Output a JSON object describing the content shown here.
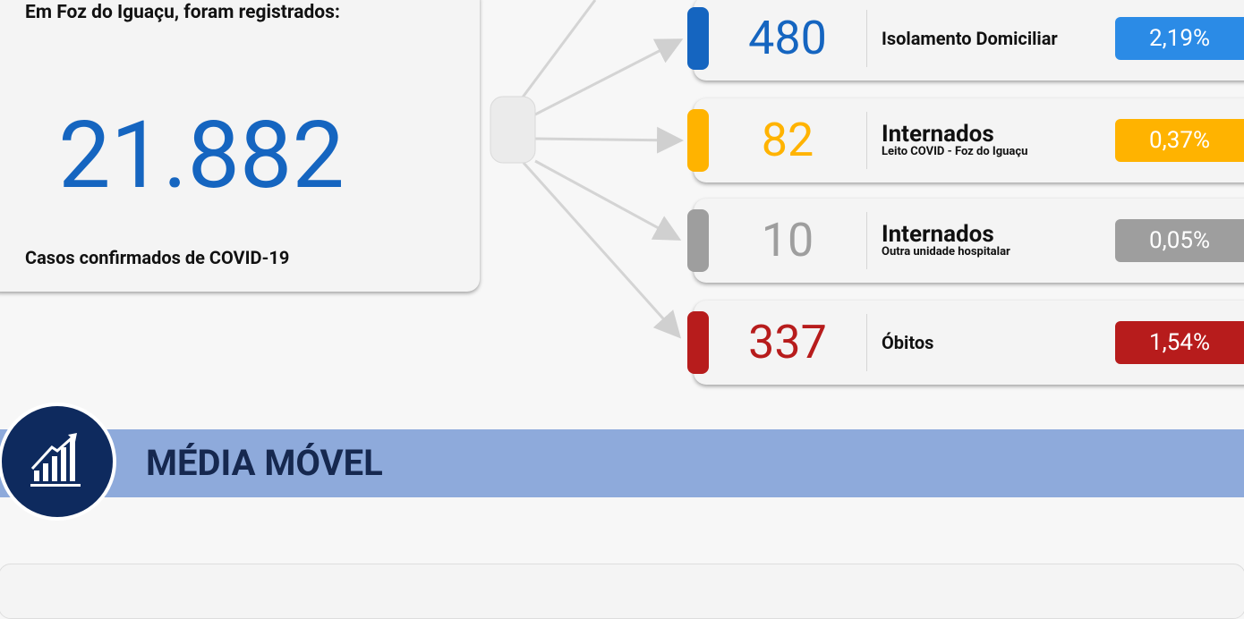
{
  "summary": {
    "heading": "Em Foz do Iguaçu, foram registrados:",
    "total": "21.882",
    "caption": "Casos confirmados de COVID-19"
  },
  "rows": [
    {
      "value": "480",
      "title": "Isolamento Domiciliar",
      "percent": "2,19%",
      "color": "#1565c0",
      "badge_color": "#2b8be6"
    },
    {
      "value": "82",
      "title": "Internados",
      "subtitle": "Leito COVID - Foz do Iguaçu",
      "percent": "0,37%",
      "color": "#ffb300",
      "badge_color": "#ffb300"
    },
    {
      "value": "10",
      "title": "Internados",
      "subtitle": "Outra unidade hospitalar",
      "percent": "0,05%",
      "color": "#9e9e9e",
      "badge_color": "#9e9e9e"
    },
    {
      "value": "337",
      "title": "Óbitos",
      "percent": "1,54%",
      "color": "#b71c1c",
      "badge_color": "#b71c1c"
    }
  ],
  "section": {
    "title": "MÉDIA MÓVEL"
  }
}
